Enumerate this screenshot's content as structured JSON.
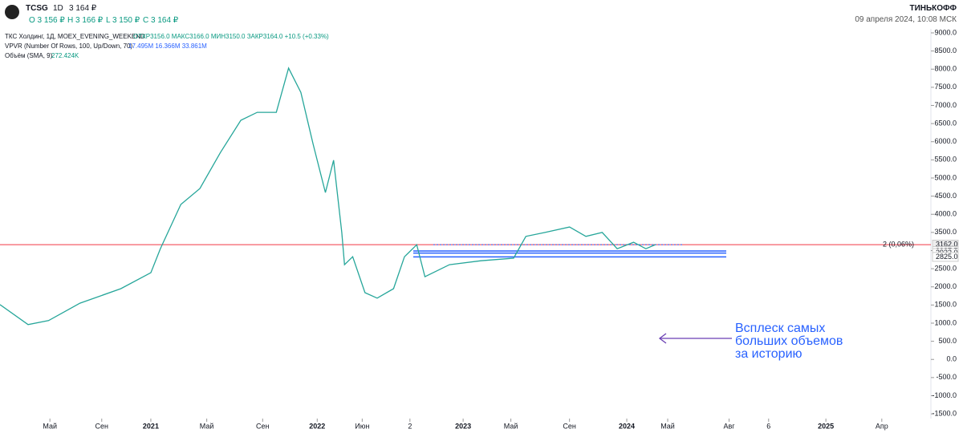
{
  "header": {
    "ticker": "TCSG",
    "interval": "1D",
    "price": "3 164 ₽",
    "open": "O 3 156 ₽",
    "high": "H 3 166 ₽",
    "low": "L 3 150 ₽",
    "close": "C 3 164 ₽",
    "brand": "ТИНЬКОФФ",
    "timestamp": "09 апреля 2024, 10:08 МСК"
  },
  "legend": {
    "line1": "ТКС Холдинг, 1Д, MOEX_EVENING_WEEKEND",
    "ohlc": "ОТКР3156.0 МАКС3166.0 МИН3150.0 ЗАКР3164.0 +10.5 (+0.33%)",
    "vpvr": "VPVR (Number Of Rows, 100, Up/Down, 70)",
    "vpvr_values": "17.495M 16.366M 33.861M",
    "volume": "Объём (SMA, 9)",
    "volume_value": "272.424K"
  },
  "chart_data": {
    "type": "line",
    "annotation": [
      "Всплеск самых",
      "больших объемов",
      "за историю"
    ],
    "series": [
      {
        "name": "TCSG",
        "color": "#26a69a",
        "x": [
          0.94,
          3.0,
          4.5,
          6.8,
          9.8,
          12,
          12.7,
          14.2,
          15.6,
          17.1,
          18.6,
          19.8,
          21.2,
          22.1,
          23,
          23.9,
          24.8,
          25.4,
          26,
          26.2,
          26.8,
          27.7,
          28.6,
          29.8,
          30.6,
          31.5,
          32.1,
          33.9,
          36.2,
          38.6,
          39.5,
          40.9,
          42.7,
          43.9,
          45.1,
          46.2,
          47.4,
          48.3,
          49
        ],
        "values": [
          1510,
          960,
          1070,
          1550,
          1950,
          2390,
          3050,
          4270,
          4710,
          5700,
          6590,
          6810,
          6810,
          8030,
          7360,
          5930,
          4600,
          5490,
          3500,
          2610,
          2830,
          1840,
          1690,
          1950,
          2830,
          3160,
          2280,
          2610,
          2720,
          2790,
          3390,
          3500,
          3650,
          3390,
          3500,
          3050,
          3230,
          3050,
          3164
        ]
      }
    ],
    "price_tags": [
      {
        "value": 3164.0,
        "label": "3164.0"
      },
      {
        "value": 3162.0,
        "label": "3162.0"
      },
      {
        "value": 2987.5,
        "label": "2987.5"
      },
      {
        "value": 2932.0,
        "label": "2932.0"
      },
      {
        "value": 2825.0,
        "label": "2825.0"
      }
    ],
    "tag_note": "2 (0,06%)",
    "xlim": [
      0.94,
      69.2
    ],
    "xticks": [
      {
        "value": 4.6,
        "label": "Май"
      },
      {
        "value": 8.4,
        "label": "Сен"
      },
      {
        "value": 12,
        "label": "2021"
      },
      {
        "value": 16.1,
        "label": "Май"
      },
      {
        "value": 20.2,
        "label": "Сен"
      },
      {
        "value": 24.2,
        "label": "2022"
      },
      {
        "value": 27.5,
        "label": "Июн"
      },
      {
        "value": 31,
        "label": "2"
      },
      {
        "value": 34.9,
        "label": "2023"
      },
      {
        "value": 38.4,
        "label": "Май"
      },
      {
        "value": 42.7,
        "label": "Сен"
      },
      {
        "value": 46.9,
        "label": "2024"
      },
      {
        "value": 49.9,
        "label": "Май"
      },
      {
        "value": 54.4,
        "label": "Авг"
      },
      {
        "value": 57.3,
        "label": "6"
      },
      {
        "value": 61.5,
        "label": "2025"
      },
      {
        "value": 65.6,
        "label": "Апр"
      }
    ],
    "ylim": [
      -1630,
      9110
    ],
    "yticks": [
      {
        "value": -1500,
        "label": "-1500.0"
      },
      {
        "value": -1000,
        "label": "-1000.0"
      },
      {
        "value": -500,
        "label": "-500.0"
      },
      {
        "value": 0,
        "label": "0.0"
      },
      {
        "value": 500,
        "label": "500.0"
      },
      {
        "value": 1000,
        "label": "1000.0"
      },
      {
        "value": 1500,
        "label": "1500.0"
      },
      {
        "value": 2000,
        "label": "2000.0"
      },
      {
        "value": 2500,
        "label": "2500.0"
      },
      {
        "value": 3000,
        "label": "3000.0"
      },
      {
        "value": 3500,
        "label": "3500.0"
      },
      {
        "value": 4000,
        "label": "4000.0"
      },
      {
        "value": 4500,
        "label": "4500.0"
      },
      {
        "value": 5000,
        "label": "5000.0"
      },
      {
        "value": 5500,
        "label": "5500.0"
      },
      {
        "value": 6000,
        "label": "6000.0"
      },
      {
        "value": 6500,
        "label": "6500.0"
      },
      {
        "value": 7000,
        "label": "7000.0"
      },
      {
        "value": 7500,
        "label": "7500.0"
      },
      {
        "value": 8000,
        "label": "8000.0"
      },
      {
        "value": 8500,
        "label": "8500.0"
      },
      {
        "value": 9000,
        "label": "9000.0"
      }
    ]
  }
}
